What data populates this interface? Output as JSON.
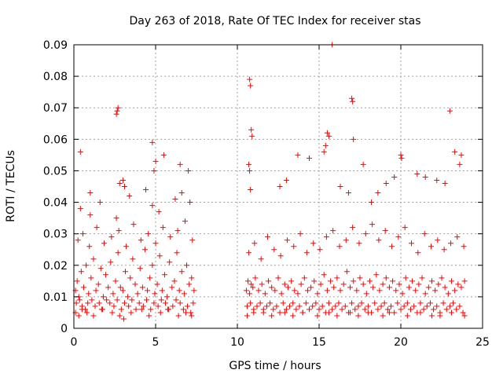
{
  "chart_data": {
    "type": "scatter",
    "title": "Day 263 of 2018, Rate Of TEC Index for receiver stas",
    "xlabel": "GPS time / hours",
    "ylabel": "ROTI / TECUs",
    "xlim": [
      0,
      25
    ],
    "ylim": [
      0,
      0.09
    ],
    "x_ticks": [
      0,
      5,
      10,
      15,
      20,
      25
    ],
    "x_tick_labels": [
      "0",
      "5",
      "10",
      "15",
      "20",
      "25"
    ],
    "y_ticks": [
      0,
      0.01,
      0.02,
      0.03,
      0.04,
      0.05,
      0.06,
      0.07,
      0.08,
      0.09
    ],
    "y_tick_labels": [
      "0",
      "0.01",
      "0.02",
      "0.03",
      "0.04",
      "0.05",
      "0.06",
      "0.07",
      "0.08",
      "0.09"
    ],
    "grid": true,
    "marker": "+",
    "marker_color": "#ff0000",
    "series": [
      {
        "name": "ROTI",
        "x": [
          0.1,
          0.2,
          0.3,
          0.45,
          0.6,
          0.75,
          0.9,
          1.05,
          1.2,
          1.35,
          1.5,
          1.65,
          1.8,
          1.95,
          2.1,
          2.25,
          2.4,
          2.55,
          2.7,
          2.85,
          3.0,
          3.15,
          3.3,
          3.45,
          3.6,
          3.75,
          3.9,
          4.05,
          4.2,
          4.35,
          4.5,
          4.65,
          4.8,
          4.95,
          5.1,
          5.25,
          5.4,
          5.55,
          5.7,
          5.85,
          6.0,
          6.15,
          6.3,
          6.45,
          6.6,
          6.75,
          6.9,
          7.05,
          7.2,
          7.35,
          0.15,
          0.35,
          0.5,
          0.7,
          0.85,
          1.1,
          1.3,
          1.55,
          1.75,
          2.0,
          2.2,
          2.45,
          2.65,
          2.9,
          3.1,
          3.35,
          3.55,
          3.8,
          4.0,
          4.25,
          4.45,
          4.7,
          4.9,
          5.15,
          5.35,
          5.6,
          5.8,
          6.05,
          6.25,
          6.5,
          6.7,
          6.95,
          7.15,
          7.3,
          0.25,
          0.55,
          0.95,
          1.4,
          1.85,
          2.3,
          2.75,
          3.2,
          3.65,
          4.1,
          4.55,
          5.0,
          5.45,
          5.9,
          6.35,
          6.8,
          7.25,
          0.4,
          1.0,
          1.6,
          2.6,
          3.4,
          4.4,
          4.8,
          5.2,
          6.2,
          6.6,
          7.1,
          0.1,
          0.3,
          0.5,
          0.8,
          1.2,
          1.7,
          2.35,
          2.8,
          3.05,
          3.5,
          4.15,
          4.6,
          5.3,
          5.75,
          6.4,
          6.85,
          7.2,
          2.6,
          2.65,
          2.7,
          2.8,
          3.0,
          3.1,
          4.8,
          4.9,
          5.0,
          5.5,
          6.5,
          7.0,
          1.0,
          0.4,
          10.55,
          10.65,
          10.75,
          10.85,
          10.95,
          11.1,
          11.3,
          11.5,
          11.7,
          11.9,
          12.1,
          12.3,
          12.5,
          12.7,
          12.9,
          13.1,
          13.3,
          13.5,
          13.7,
          13.9,
          14.1,
          14.3,
          14.5,
          14.7,
          14.9,
          15.1,
          15.3,
          15.5,
          15.7,
          15.9,
          16.1,
          16.3,
          16.5,
          16.7,
          16.9,
          17.1,
          17.3,
          17.5,
          17.7,
          17.9,
          18.1,
          18.3,
          18.5,
          18.7,
          18.9,
          19.1,
          19.3,
          19.5,
          19.7,
          19.9,
          20.1,
          20.3,
          20.5,
          20.7,
          20.9,
          21.1,
          21.3,
          21.5,
          21.7,
          21.9,
          22.1,
          22.3,
          22.5,
          22.7,
          22.9,
          23.1,
          23.3,
          23.5,
          23.7,
          23.9,
          10.6,
          10.8,
          11.0,
          11.2,
          11.4,
          11.6,
          11.8,
          12.0,
          12.2,
          12.4,
          12.6,
          12.8,
          13.0,
          13.2,
          13.4,
          13.6,
          13.8,
          14.0,
          14.2,
          14.4,
          14.6,
          14.8,
          15.0,
          15.2,
          15.4,
          15.6,
          15.8,
          16.0,
          16.2,
          16.4,
          16.6,
          16.8,
          17.0,
          17.2,
          17.4,
          17.6,
          17.8,
          18.0,
          18.2,
          18.4,
          18.6,
          18.8,
          19.0,
          19.2,
          19.4,
          19.6,
          19.8,
          20.0,
          20.2,
          20.4,
          20.6,
          20.8,
          21.0,
          21.2,
          21.4,
          21.6,
          21.8,
          22.0,
          22.2,
          22.4,
          22.6,
          22.8,
          23.0,
          23.2,
          23.4,
          23.6,
          23.8,
          10.7,
          11.05,
          11.45,
          11.85,
          12.25,
          12.65,
          13.05,
          13.45,
          13.85,
          14.25,
          14.65,
          15.05,
          15.45,
          15.85,
          16.25,
          16.65,
          17.05,
          17.45,
          17.85,
          18.25,
          18.65,
          19.05,
          19.45,
          19.85,
          20.25,
          20.65,
          21.05,
          21.45,
          21.85,
          22.25,
          22.65,
          23.05,
          23.45,
          23.85,
          10.75,
          10.8,
          10.85,
          10.9,
          10.7,
          10.75,
          10.8,
          12.6,
          13.0,
          13.7,
          14.4,
          15.3,
          15.4,
          15.5,
          15.6,
          15.8,
          16.3,
          16.8,
          17.0,
          17.05,
          17.1,
          17.7,
          18.2,
          18.6,
          19.1,
          19.6,
          20.0,
          20.05,
          21.0,
          21.5,
          22.2,
          22.7,
          23.0,
          23.3,
          23.6,
          23.7,
          10.6,
          11.0,
          11.6,
          12.1,
          12.9,
          13.4,
          14.0,
          14.9,
          15.6,
          16.1,
          16.9,
          17.4,
          18.0,
          18.9,
          19.3,
          20.4,
          21.2,
          21.9,
          22.4,
          23.1,
          23.9
        ],
        "y": [
          0.012,
          0.015,
          0.01,
          0.018,
          0.013,
          0.02,
          0.011,
          0.016,
          0.022,
          0.012,
          0.014,
          0.019,
          0.01,
          0.017,
          0.013,
          0.021,
          0.011,
          0.015,
          0.024,
          0.013,
          0.012,
          0.018,
          0.01,
          0.016,
          0.022,
          0.014,
          0.011,
          0.019,
          0.013,
          0.025,
          0.012,
          0.016,
          0.02,
          0.011,
          0.014,
          0.023,
          0.012,
          0.017,
          0.01,
          0.021,
          0.013,
          0.015,
          0.024,
          0.012,
          0.018,
          0.011,
          0.02,
          0.014,
          0.016,
          0.012,
          0.008,
          0.009,
          0.007,
          0.006,
          0.008,
          0.009,
          0.007,
          0.008,
          0.006,
          0.009,
          0.008,
          0.007,
          0.009,
          0.006,
          0.008,
          0.007,
          0.009,
          0.006,
          0.008,
          0.007,
          0.009,
          0.006,
          0.008,
          0.007,
          0.009,
          0.008,
          0.006,
          0.007,
          0.009,
          0.008,
          0.006,
          0.007,
          0.005,
          0.008,
          0.028,
          0.03,
          0.026,
          0.032,
          0.027,
          0.029,
          0.031,
          0.026,
          0.033,
          0.028,
          0.03,
          0.027,
          0.032,
          0.029,
          0.031,
          0.034,
          0.028,
          0.038,
          0.036,
          0.04,
          0.035,
          0.042,
          0.044,
          0.039,
          0.037,
          0.041,
          0.043,
          0.04,
          0.005,
          0.004,
          0.006,
          0.005,
          0.004,
          0.006,
          0.005,
          0.004,
          0.003,
          0.005,
          0.006,
          0.004,
          0.005,
          0.006,
          0.004,
          0.005,
          0.004,
          0.068,
          0.069,
          0.07,
          0.046,
          0.047,
          0.045,
          0.059,
          0.05,
          0.053,
          0.055,
          0.052,
          0.05,
          0.043,
          0.056,
          0.012,
          0.015,
          0.011,
          0.014,
          0.013,
          0.016,
          0.012,
          0.014,
          0.011,
          0.015,
          0.013,
          0.012,
          0.016,
          0.011,
          0.014,
          0.013,
          0.015,
          0.012,
          0.011,
          0.014,
          0.016,
          0.012,
          0.013,
          0.015,
          0.011,
          0.014,
          0.017,
          0.012,
          0.015,
          0.013,
          0.016,
          0.012,
          0.014,
          0.018,
          0.013,
          0.015,
          0.012,
          0.016,
          0.014,
          0.011,
          0.015,
          0.013,
          0.017,
          0.012,
          0.014,
          0.016,
          0.013,
          0.015,
          0.012,
          0.014,
          0.011,
          0.016,
          0.013,
          0.015,
          0.012,
          0.014,
          0.016,
          0.011,
          0.013,
          0.015,
          0.012,
          0.014,
          0.016,
          0.013,
          0.011,
          0.015,
          0.012,
          0.014,
          0.013,
          0.015,
          0.007,
          0.008,
          0.006,
          0.007,
          0.008,
          0.006,
          0.007,
          0.008,
          0.006,
          0.007,
          0.005,
          0.008,
          0.006,
          0.007,
          0.008,
          0.006,
          0.007,
          0.005,
          0.008,
          0.006,
          0.007,
          0.008,
          0.006,
          0.007,
          0.005,
          0.008,
          0.006,
          0.007,
          0.008,
          0.006,
          0.007,
          0.005,
          0.008,
          0.006,
          0.007,
          0.008,
          0.006,
          0.007,
          0.005,
          0.008,
          0.006,
          0.007,
          0.008,
          0.006,
          0.007,
          0.005,
          0.008,
          0.006,
          0.007,
          0.008,
          0.006,
          0.007,
          0.005,
          0.008,
          0.006,
          0.007,
          0.008,
          0.006,
          0.007,
          0.005,
          0.008,
          0.006,
          0.007,
          0.008,
          0.006,
          0.007,
          0.005,
          0.024,
          0.027,
          0.022,
          0.029,
          0.025,
          0.023,
          0.028,
          0.026,
          0.03,
          0.024,
          0.027,
          0.025,
          0.029,
          0.031,
          0.026,
          0.028,
          0.032,
          0.027,
          0.03,
          0.033,
          0.028,
          0.031,
          0.026,
          0.029,
          0.032,
          0.027,
          0.024,
          0.03,
          0.026,
          0.028,
          0.025,
          0.027,
          0.029,
          0.026,
          0.079,
          0.077,
          0.063,
          0.061,
          0.052,
          0.05,
          0.044,
          0.045,
          0.047,
          0.055,
          0.054,
          0.056,
          0.058,
          0.062,
          0.061,
          0.09,
          0.045,
          0.043,
          0.073,
          0.072,
          0.06,
          0.052,
          0.04,
          0.043,
          0.046,
          0.048,
          0.055,
          0.054,
          0.049,
          0.048,
          0.047,
          0.046,
          0.069,
          0.056,
          0.052,
          0.055,
          0.004,
          0.005,
          0.005,
          0.004,
          0.005,
          0.004,
          0.005,
          0.004,
          0.005,
          0.004,
          0.005,
          0.004,
          0.005,
          0.004,
          0.005,
          0.004,
          0.005,
          0.004,
          0.004,
          0.005,
          0.004
        ]
      }
    ]
  }
}
